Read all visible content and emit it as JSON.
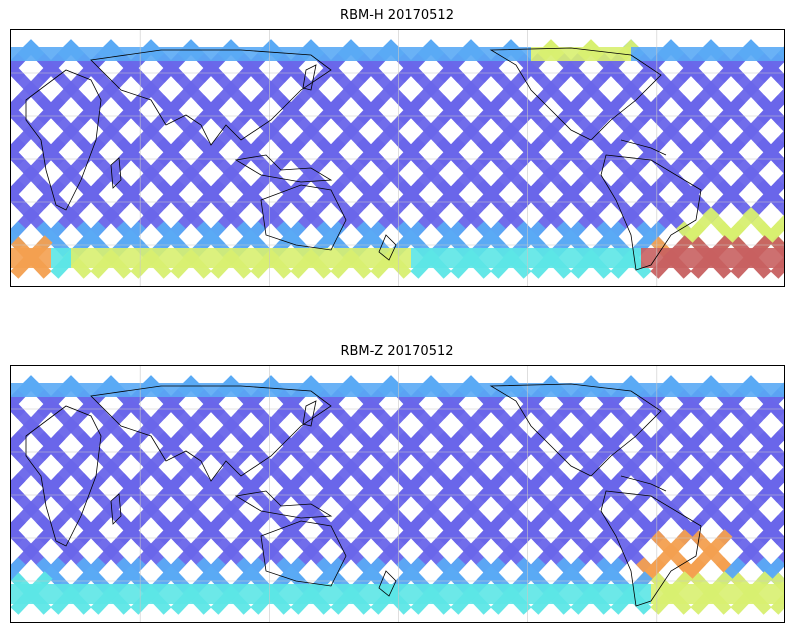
{
  "figure": {
    "panels": [
      {
        "title": "RBM-H 20170512",
        "hot_zones": "south"
      },
      {
        "title": "RBM-Z 20170512",
        "hot_zones": "weak"
      }
    ]
  },
  "colors": {
    "low": "#6a66ea",
    "mid_low": "#5aaaf5",
    "mid": "#5ce6e6",
    "mid_high": "#d8f070",
    "high": "#f4a050",
    "max": "#c86060",
    "coast": "#000000",
    "grid": "#c8c8c8"
  }
}
